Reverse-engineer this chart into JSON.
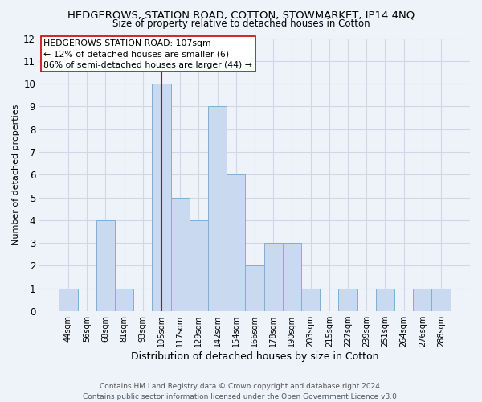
{
  "title": "HEDGEROWS, STATION ROAD, COTTON, STOWMARKET, IP14 4NQ",
  "subtitle": "Size of property relative to detached houses in Cotton",
  "xlabel": "Distribution of detached houses by size in Cotton",
  "ylabel": "Number of detached properties",
  "footer_line1": "Contains HM Land Registry data © Crown copyright and database right 2024.",
  "footer_line2": "Contains public sector information licensed under the Open Government Licence v3.0.",
  "bar_labels": [
    "44sqm",
    "56sqm",
    "68sqm",
    "81sqm",
    "93sqm",
    "105sqm",
    "117sqm",
    "129sqm",
    "142sqm",
    "154sqm",
    "166sqm",
    "178sqm",
    "190sqm",
    "203sqm",
    "215sqm",
    "227sqm",
    "239sqm",
    "251sqm",
    "264sqm",
    "276sqm",
    "288sqm"
  ],
  "bar_values": [
    1,
    0,
    4,
    1,
    0,
    10,
    5,
    4,
    9,
    6,
    2,
    3,
    3,
    1,
    0,
    1,
    0,
    1,
    0,
    1,
    1
  ],
  "bar_color": "#c9d9f0",
  "bar_edge_color": "#7fafd4",
  "vline_x": 5,
  "vline_color": "#cc0000",
  "annotation_line1": "HEDGEROWS STATION ROAD: 107sqm",
  "annotation_line2": "← 12% of detached houses are smaller (6)",
  "annotation_line3": "86% of semi-detached houses are larger (44) →",
  "annotation_box_color": "#ffffff",
  "annotation_box_edge": "#cc0000",
  "ylim": [
    0,
    12
  ],
  "yticks": [
    0,
    1,
    2,
    3,
    4,
    5,
    6,
    7,
    8,
    9,
    10,
    11,
    12
  ],
  "grid_color": "#d0d8e8",
  "background_color": "#eef2f9"
}
